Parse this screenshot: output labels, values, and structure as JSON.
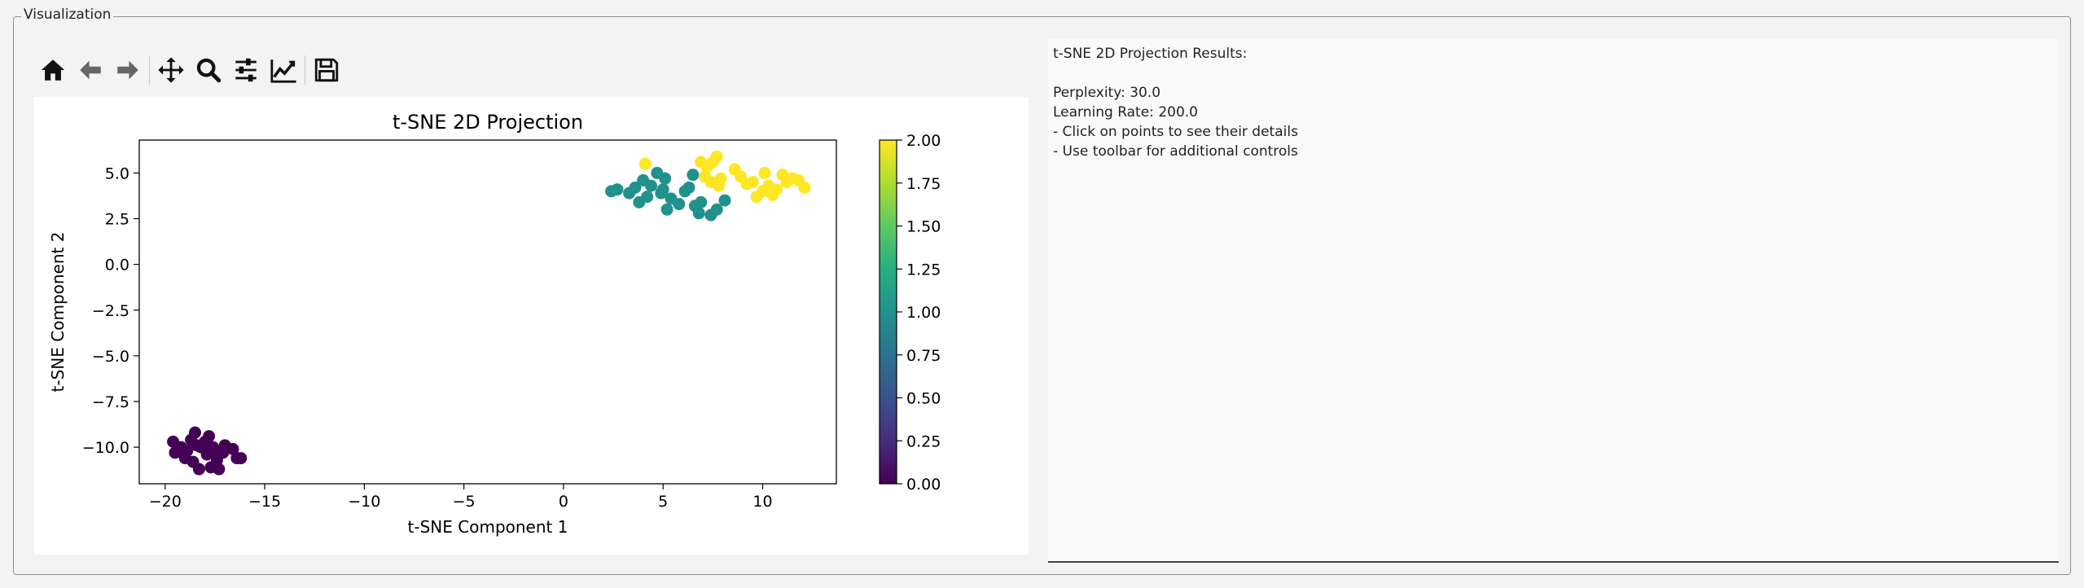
{
  "window": {
    "group_title": "Visualization"
  },
  "toolbar": {
    "buttons": [
      {
        "name": "home",
        "icon": "home-icon"
      },
      {
        "name": "back",
        "icon": "arrow-left-icon"
      },
      {
        "name": "forward",
        "icon": "arrow-right-icon"
      },
      {
        "name": "pan",
        "icon": "move-icon"
      },
      {
        "name": "zoom",
        "icon": "magnifier-icon"
      },
      {
        "name": "configure-subplots",
        "icon": "sliders-icon"
      },
      {
        "name": "edit-axis",
        "icon": "line-chart-icon"
      },
      {
        "name": "save",
        "icon": "floppy-disk-icon"
      }
    ]
  },
  "info": {
    "lines": [
      "t-SNE 2D Projection Results:",
      "",
      "Perplexity: 30.0",
      "Learning Rate: 200.0",
      "- Click on points to see their details",
      "- Use toolbar for additional controls"
    ]
  },
  "chart_data": {
    "type": "scatter",
    "title": "t-SNE 2D Projection",
    "xlabel": "t-SNE Component 1",
    "ylabel": "t-SNE Component 2",
    "xlim": [
      -21.3,
      13.7
    ],
    "ylim": [
      -12.0,
      6.8
    ],
    "xticks": [
      -20,
      -15,
      -10,
      -5,
      0,
      5,
      10
    ],
    "xtick_labels": [
      "−20",
      "−15",
      "−10",
      "−5",
      "0",
      "5",
      "10"
    ],
    "yticks": [
      5.0,
      2.5,
      0.0,
      -2.5,
      -5.0,
      -7.5,
      -10.0
    ],
    "ytick_labels": [
      "5.0",
      "2.5",
      "0.0",
      "−2.5",
      "−5.0",
      "−7.5",
      "−10.0"
    ],
    "colorbar": {
      "colormap": "viridis",
      "range": [
        0.0,
        2.0
      ],
      "ticks": [
        0.0,
        0.25,
        0.5,
        0.75,
        1.0,
        1.25,
        1.5,
        1.75,
        2.0
      ],
      "tick_labels": [
        "0.00",
        "0.25",
        "0.50",
        "0.75",
        "1.00",
        "1.25",
        "1.50",
        "1.75",
        "2.00"
      ]
    },
    "colors": {
      "class0": "#440154",
      "class1": "#21918c",
      "class2": "#fde725"
    },
    "points": [
      {
        "x": -19.6,
        "y": -9.7,
        "c": 0
      },
      {
        "x": -19.2,
        "y": -10.0,
        "c": 0
      },
      {
        "x": -19.5,
        "y": -10.3,
        "c": 0
      },
      {
        "x": -19.0,
        "y": -10.6,
        "c": 0
      },
      {
        "x": -18.7,
        "y": -9.6,
        "c": 0
      },
      {
        "x": -18.5,
        "y": -9.2,
        "c": 0
      },
      {
        "x": -18.9,
        "y": -10.2,
        "c": 0
      },
      {
        "x": -18.6,
        "y": -10.8,
        "c": 0
      },
      {
        "x": -18.3,
        "y": -11.2,
        "c": 0
      },
      {
        "x": -18.2,
        "y": -10.0,
        "c": 0
      },
      {
        "x": -18.0,
        "y": -9.7,
        "c": 0
      },
      {
        "x": -17.8,
        "y": -9.4,
        "c": 0
      },
      {
        "x": -17.9,
        "y": -10.4,
        "c": 0
      },
      {
        "x": -17.6,
        "y": -10.0,
        "c": 0
      },
      {
        "x": -17.7,
        "y": -11.1,
        "c": 0
      },
      {
        "x": -17.4,
        "y": -10.7,
        "c": 0
      },
      {
        "x": -17.3,
        "y": -11.2,
        "c": 0
      },
      {
        "x": -17.1,
        "y": -10.3,
        "c": 0
      },
      {
        "x": -17.0,
        "y": -9.9,
        "c": 0
      },
      {
        "x": -16.6,
        "y": -10.1,
        "c": 0
      },
      {
        "x": -16.4,
        "y": -10.6,
        "c": 0
      },
      {
        "x": -16.2,
        "y": -10.6,
        "c": 0
      },
      {
        "x": -18.4,
        "y": -9.9,
        "c": 0
      },
      {
        "x": -17.5,
        "y": -10.4,
        "c": 0
      },
      {
        "x": 2.4,
        "y": 4.0,
        "c": 1
      },
      {
        "x": 2.7,
        "y": 4.1,
        "c": 1
      },
      {
        "x": 3.3,
        "y": 3.9,
        "c": 1
      },
      {
        "x": 3.6,
        "y": 4.2,
        "c": 1
      },
      {
        "x": 3.8,
        "y": 3.4,
        "c": 1
      },
      {
        "x": 4.0,
        "y": 4.6,
        "c": 1
      },
      {
        "x": 4.2,
        "y": 3.7,
        "c": 1
      },
      {
        "x": 4.4,
        "y": 4.3,
        "c": 1
      },
      {
        "x": 4.7,
        "y": 5.0,
        "c": 1
      },
      {
        "x": 4.9,
        "y": 3.9,
        "c": 1
      },
      {
        "x": 5.1,
        "y": 4.7,
        "c": 1
      },
      {
        "x": 5.2,
        "y": 3.0,
        "c": 1
      },
      {
        "x": 5.4,
        "y": 3.6,
        "c": 1
      },
      {
        "x": 5.8,
        "y": 3.3,
        "c": 1
      },
      {
        "x": 6.1,
        "y": 4.0,
        "c": 1
      },
      {
        "x": 6.3,
        "y": 4.2,
        "c": 1
      },
      {
        "x": 6.6,
        "y": 3.2,
        "c": 1
      },
      {
        "x": 6.8,
        "y": 2.8,
        "c": 1
      },
      {
        "x": 6.9,
        "y": 3.4,
        "c": 1
      },
      {
        "x": 6.5,
        "y": 4.9,
        "c": 1
      },
      {
        "x": 7.4,
        "y": 2.7,
        "c": 1
      },
      {
        "x": 7.7,
        "y": 3.0,
        "c": 1
      },
      {
        "x": 8.1,
        "y": 3.5,
        "c": 1
      },
      {
        "x": 5.0,
        "y": 4.1,
        "c": 1
      },
      {
        "x": 4.1,
        "y": 5.5,
        "c": 2
      },
      {
        "x": 6.9,
        "y": 5.6,
        "c": 2
      },
      {
        "x": 7.2,
        "y": 5.3,
        "c": 2
      },
      {
        "x": 7.5,
        "y": 5.6,
        "c": 2
      },
      {
        "x": 7.7,
        "y": 5.9,
        "c": 2
      },
      {
        "x": 7.1,
        "y": 4.8,
        "c": 2
      },
      {
        "x": 7.4,
        "y": 4.5,
        "c": 2
      },
      {
        "x": 7.9,
        "y": 4.7,
        "c": 2
      },
      {
        "x": 8.6,
        "y": 5.2,
        "c": 2
      },
      {
        "x": 8.9,
        "y": 4.8,
        "c": 2
      },
      {
        "x": 9.2,
        "y": 4.4,
        "c": 2
      },
      {
        "x": 9.5,
        "y": 4.5,
        "c": 2
      },
      {
        "x": 9.7,
        "y": 3.7,
        "c": 2
      },
      {
        "x": 10.0,
        "y": 4.0,
        "c": 2
      },
      {
        "x": 10.1,
        "y": 5.0,
        "c": 2
      },
      {
        "x": 10.3,
        "y": 4.3,
        "c": 2
      },
      {
        "x": 10.5,
        "y": 3.8,
        "c": 2
      },
      {
        "x": 10.7,
        "y": 4.1,
        "c": 2
      },
      {
        "x": 11.0,
        "y": 4.9,
        "c": 2
      },
      {
        "x": 11.2,
        "y": 4.5,
        "c": 2
      },
      {
        "x": 11.5,
        "y": 4.7,
        "c": 2
      },
      {
        "x": 11.8,
        "y": 4.6,
        "c": 2
      },
      {
        "x": 12.1,
        "y": 4.2,
        "c": 2
      },
      {
        "x": 7.8,
        "y": 4.3,
        "c": 2
      }
    ]
  }
}
